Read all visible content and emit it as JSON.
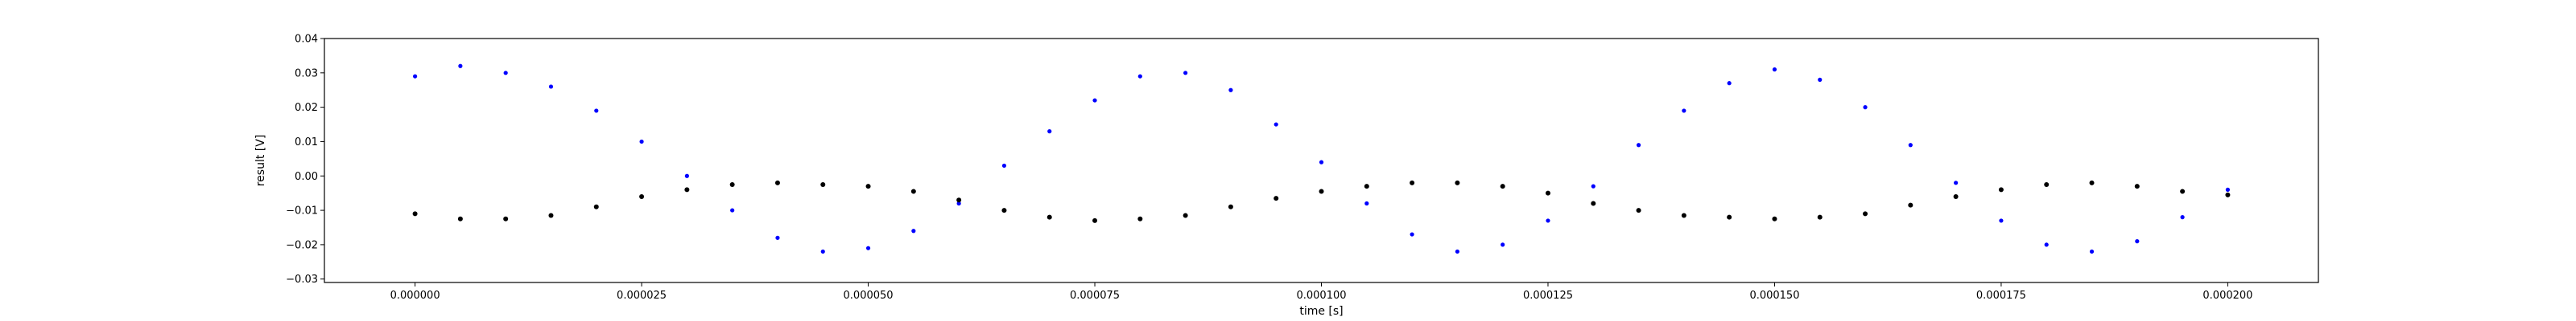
{
  "chart_data": {
    "type": "scatter",
    "xlabel": "time [s]",
    "ylabel": "result [V]",
    "xlim": [
      -1e-05,
      0.00021
    ],
    "ylim": [
      -0.031,
      0.04
    ],
    "x_ticks": [
      0,
      2.5e-05,
      5e-05,
      7.5e-05,
      0.0001,
      0.000125,
      0.00015,
      0.000175,
      0.0002
    ],
    "x_tick_labels": [
      "0.000000",
      "0.000025",
      "0.000050",
      "0.000075",
      "0.000100",
      "0.000125",
      "0.000150",
      "0.000175",
      "0.000200"
    ],
    "y_ticks": [
      -0.03,
      -0.02,
      -0.01,
      0.0,
      0.01,
      0.02,
      0.03,
      0.04
    ],
    "y_tick_labels": [
      "−0.03",
      "−0.02",
      "−0.01",
      "0.00",
      "0.01",
      "0.02",
      "0.03",
      "0.04"
    ],
    "grid": false,
    "series": [
      {
        "color": "#0000ff",
        "marker_size": 2.6,
        "points": [
          [
            0.0,
            0.029
          ],
          [
            5e-06,
            0.032
          ],
          [
            1e-05,
            0.03
          ],
          [
            1.5e-05,
            0.026
          ],
          [
            2e-05,
            0.019
          ],
          [
            2.5e-05,
            0.01
          ],
          [
            3e-05,
            0.0
          ],
          [
            3.5e-05,
            -0.01
          ],
          [
            4e-05,
            -0.018
          ],
          [
            4.5e-05,
            -0.022
          ],
          [
            5e-05,
            -0.021
          ],
          [
            5.5e-05,
            -0.016
          ],
          [
            6e-05,
            -0.008
          ],
          [
            6.5e-05,
            0.003
          ],
          [
            7e-05,
            0.013
          ],
          [
            7.5e-05,
            0.022
          ],
          [
            8e-05,
            0.029
          ],
          [
            8.5e-05,
            0.03
          ],
          [
            9e-05,
            0.025
          ],
          [
            9.5e-05,
            0.015
          ],
          [
            0.0001,
            0.004
          ],
          [
            0.000105,
            -0.008
          ],
          [
            0.00011,
            -0.017
          ],
          [
            0.000115,
            -0.022
          ],
          [
            0.00012,
            -0.02
          ],
          [
            0.000125,
            -0.013
          ],
          [
            0.00013,
            -0.003
          ],
          [
            0.000135,
            0.009
          ],
          [
            0.00014,
            0.019
          ],
          [
            0.000145,
            0.027
          ],
          [
            0.00015,
            0.031
          ],
          [
            0.000155,
            0.028
          ],
          [
            0.00016,
            0.02
          ],
          [
            0.000165,
            0.009
          ],
          [
            0.00017,
            -0.002
          ],
          [
            0.000175,
            -0.013
          ],
          [
            0.00018,
            -0.02
          ],
          [
            0.000185,
            -0.022
          ],
          [
            0.00019,
            -0.019
          ],
          [
            0.000195,
            -0.012
          ],
          [
            0.0002,
            -0.004
          ]
        ]
      },
      {
        "color": "#000000",
        "marker_size": 3.0,
        "points": [
          [
            0.0,
            -0.011
          ],
          [
            5e-06,
            -0.0125
          ],
          [
            1e-05,
            -0.0125
          ],
          [
            1.5e-05,
            -0.0115
          ],
          [
            2e-05,
            -0.009
          ],
          [
            2.5e-05,
            -0.006
          ],
          [
            3e-05,
            -0.004
          ],
          [
            3.5e-05,
            -0.0025
          ],
          [
            4e-05,
            -0.002
          ],
          [
            4.5e-05,
            -0.0025
          ],
          [
            5e-05,
            -0.003
          ],
          [
            5.5e-05,
            -0.0045
          ],
          [
            6e-05,
            -0.007
          ],
          [
            6.5e-05,
            -0.01
          ],
          [
            7e-05,
            -0.012
          ],
          [
            7.5e-05,
            -0.013
          ],
          [
            8e-05,
            -0.0125
          ],
          [
            8.5e-05,
            -0.0115
          ],
          [
            9e-05,
            -0.009
          ],
          [
            9.5e-05,
            -0.0065
          ],
          [
            0.0001,
            -0.0045
          ],
          [
            0.000105,
            -0.003
          ],
          [
            0.00011,
            -0.002
          ],
          [
            0.000115,
            -0.002
          ],
          [
            0.00012,
            -0.003
          ],
          [
            0.000125,
            -0.005
          ],
          [
            0.00013,
            -0.008
          ],
          [
            0.000135,
            -0.01
          ],
          [
            0.00014,
            -0.0115
          ],
          [
            0.000145,
            -0.012
          ],
          [
            0.00015,
            -0.0125
          ],
          [
            0.000155,
            -0.012
          ],
          [
            0.00016,
            -0.011
          ],
          [
            0.000165,
            -0.0085
          ],
          [
            0.00017,
            -0.006
          ],
          [
            0.000175,
            -0.004
          ],
          [
            0.00018,
            -0.0025
          ],
          [
            0.000185,
            -0.002
          ],
          [
            0.00019,
            -0.003
          ],
          [
            0.000195,
            -0.0045
          ],
          [
            0.0002,
            -0.0055
          ]
        ]
      }
    ]
  }
}
